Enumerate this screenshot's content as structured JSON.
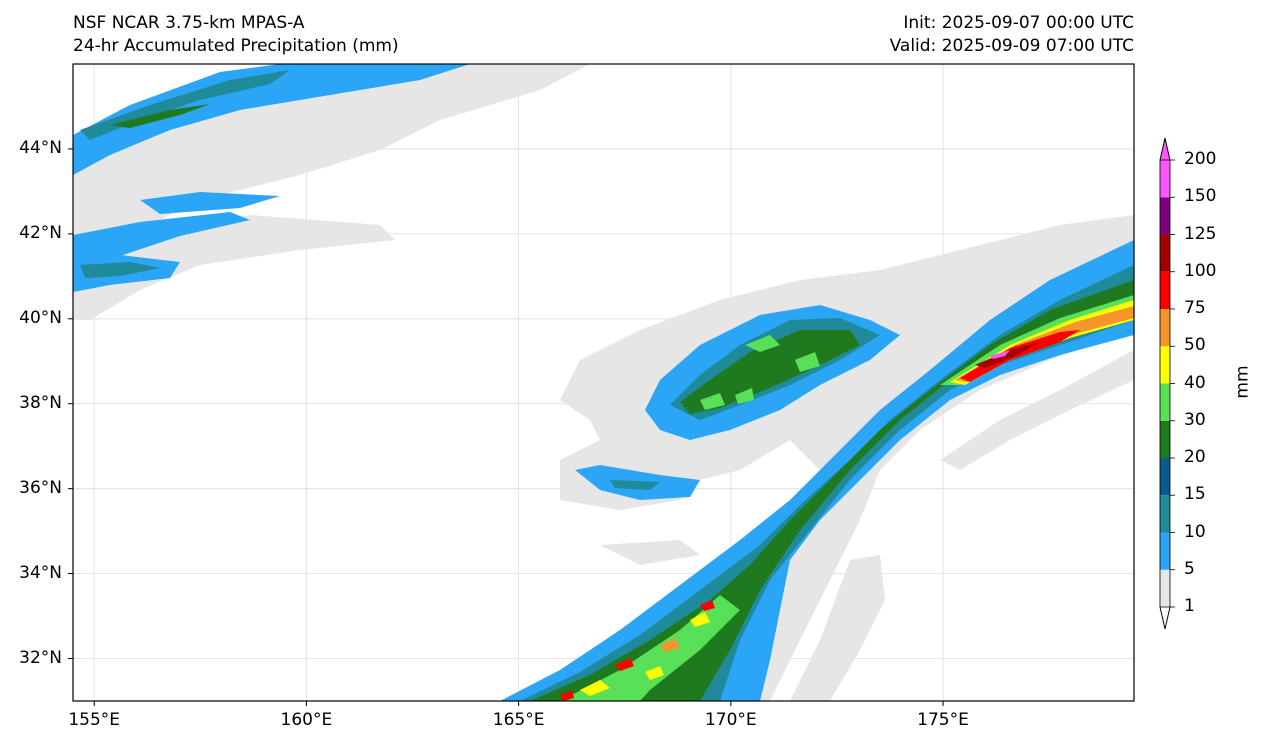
{
  "header": {
    "model": "NSF NCAR 3.75-km MPAS-A",
    "field": "24-hr Accumulated Precipitation (mm)",
    "init": "Init: 2025-09-07 00:00 UTC",
    "valid": "Valid: 2025-09-09 07:00 UTC"
  },
  "map": {
    "lat_labels": [
      "44°N",
      "42°N",
      "40°N",
      "38°N",
      "36°N",
      "34°N",
      "32°N"
    ],
    "lon_labels": [
      "155°E",
      "160°E",
      "165°E",
      "170°E",
      "175°E"
    ],
    "extent": {
      "lon_min": 154.5,
      "lon_max": 179.5,
      "lat_min": 31.0,
      "lat_max": 46.0
    }
  },
  "colorbar": {
    "unit": "mm",
    "levels": [
      "1",
      "5",
      "10",
      "15",
      "20",
      "30",
      "40",
      "50",
      "75",
      "100",
      "125",
      "150",
      "200"
    ],
    "colors": [
      "#e6e6e6",
      "#2ba5f5",
      "#1e8a9a",
      "#0a5a8c",
      "#1f7a1f",
      "#58e058",
      "#ffff00",
      "#f5962d",
      "#ff0000",
      "#a50000",
      "#800080",
      "#ff55ff"
    ],
    "extend": "both"
  }
}
